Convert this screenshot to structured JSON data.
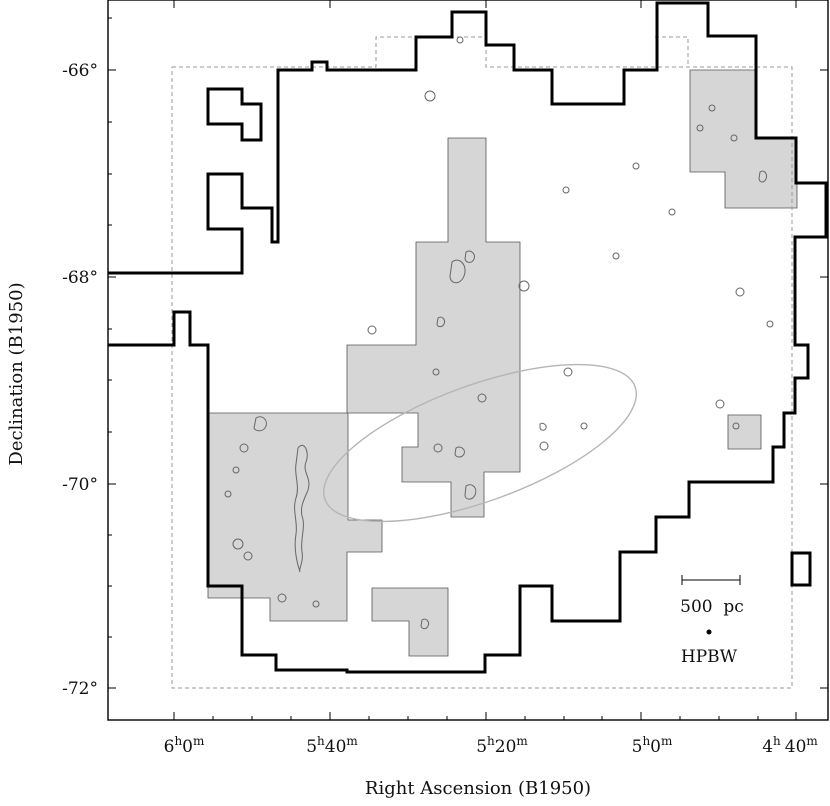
{
  "chart_data": {
    "type": "map",
    "title": "",
    "xlabel": "Right Ascension (B1950)",
    "ylabel": "Declination (B1950)",
    "x_axis": {
      "unit": "RA",
      "ticks": [
        {
          "h": 6,
          "m": 0,
          "label_h": "6",
          "label_m": "0"
        },
        {
          "h": 5,
          "m": 40,
          "label_h": "5",
          "label_m": "40"
        },
        {
          "h": 5,
          "m": 20,
          "label_h": "5",
          "label_m": "20"
        },
        {
          "h": 5,
          "m": 0,
          "label_h": "5",
          "label_m": "0"
        },
        {
          "h": 4,
          "m": 40,
          "label_h": "4",
          "label_m": "40"
        }
      ],
      "sup_h": "h",
      "sup_m": "m"
    },
    "y_axis": {
      "unit": "deg",
      "ticks": [
        {
          "value": -66,
          "label": "-66°"
        },
        {
          "value": -68,
          "label": "-68°"
        },
        {
          "value": -70,
          "label": "-70°"
        },
        {
          "value": -72,
          "label": "-72°"
        }
      ]
    },
    "annotations": {
      "scale_bar": "500  pc",
      "beam": "HPBW"
    },
    "colors": {
      "survey_outline": "#000000",
      "shaded_regions": "#d6d6d6",
      "dashed_boundary": "#9a9a9a",
      "contours": "#666666",
      "ellipse": "#b5b5b5"
    }
  }
}
